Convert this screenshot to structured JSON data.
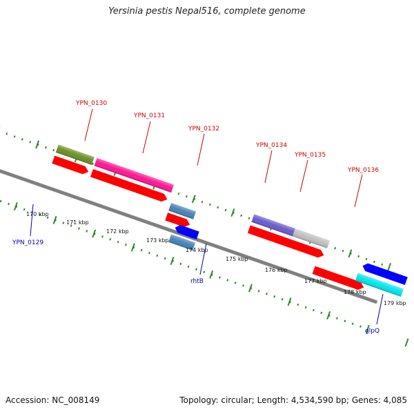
{
  "title": "Yersinia pestis Nepal516, complete genome",
  "footer": {
    "accession": "Accession: NC_008149",
    "stats": "Topology: circular; Length: 4,534,590 bp; Genes: 4,085"
  },
  "ticks": [
    "170 kbp",
    "171 kbp",
    "172 kbp",
    "173 kbp",
    "174 kbp",
    "175 kbp",
    "176 kbp",
    "177 kbp",
    "178 kbp",
    "179 kbp"
  ],
  "upper_labels": [
    "YPN_0130",
    "YPN_0131",
    "YPN_0132",
    "YPN_0134",
    "YPN_0135",
    "YPN_0136"
  ],
  "lower_labels": [
    "YPN_0129",
    "rhtB",
    "glpQ"
  ],
  "colors": {
    "upper_label": "#cc0000",
    "lower_label": "#0000aa",
    "backbone": "#888888",
    "tick": "#2a8a2a",
    "red": "#ff0000",
    "olive": "#6b8e23",
    "pink": "#ff1493",
    "steelblue": "#4682b4",
    "slateblue": "#6a5acd",
    "silver": "#c0c0c0",
    "blue": "#0000ff",
    "navy": "#000080",
    "cyan": "#00e5ee"
  }
}
